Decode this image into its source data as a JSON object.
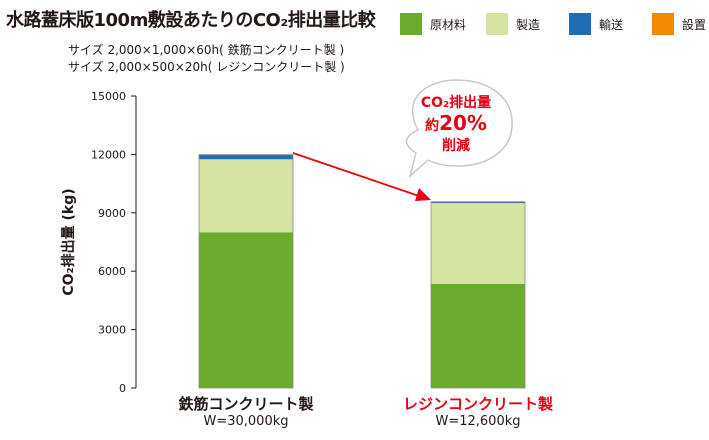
{
  "title": "水路蓋床版100m敷設あたりのCO₂排出量比較",
  "subtitle_lines": [
    "サイズ 2,000×1,000×60h( 鉄筋コンクリート製 )",
    "サイズ 2,000×500×20h( レジンコンクリート製 )"
  ],
  "legend": [
    {
      "label": "原材料",
      "color": "#6aab2e"
    },
    {
      "label": "製造",
      "color": "#d5e4a3"
    },
    {
      "label": "輸送",
      "color": "#1f6db3"
    },
    {
      "label": "設置",
      "color": "#f08a00"
    }
  ],
  "callout": {
    "line1": "CO₂排出量",
    "line2_prefix": "約",
    "line2_value": "20%",
    "line3": "削減",
    "color": "#e60012"
  },
  "chart_data": {
    "type": "bar",
    "stacked": true,
    "categories": [
      "鉄筋コンクリート製",
      "レジンコンクリート製"
    ],
    "category_weights": [
      "W=30,000kg",
      "W=12,600kg"
    ],
    "series": [
      {
        "name": "原材料",
        "values": [
          8000,
          5350
        ],
        "color": "#6aab2e"
      },
      {
        "name": "製造",
        "values": [
          3750,
          4150
        ],
        "color": "#d5e4a3"
      },
      {
        "name": "輸送",
        "values": [
          220,
          60
        ],
        "color": "#1f6db3"
      },
      {
        "name": "設置",
        "values": [
          20,
          10
        ],
        "color": "#f08a00"
      }
    ],
    "ylabel": "CO₂排出量 (kg)",
    "ylim": [
      0,
      15000
    ],
    "yticks": [
      0,
      3000,
      6000,
      9000,
      12000,
      15000
    ],
    "grid": false,
    "legend_position": "top-right"
  }
}
